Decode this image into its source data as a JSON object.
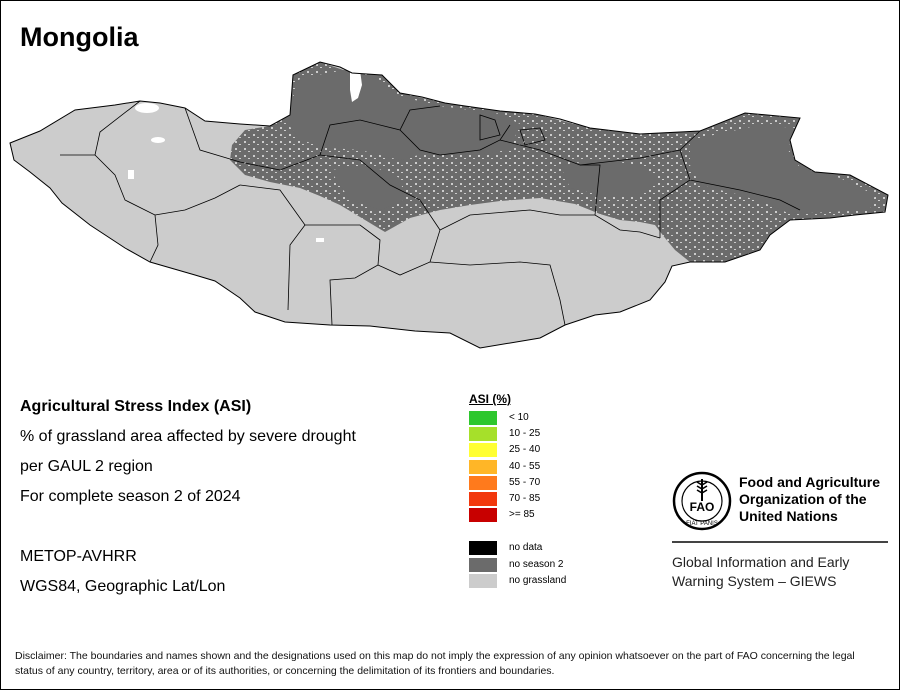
{
  "map": {
    "title": "Mongolia",
    "country": "Mongolia",
    "colors": {
      "no_grassland": "#cccccc",
      "no_season": "#6b6b6b",
      "boundary": "#000000"
    }
  },
  "info": {
    "index_name": "Agricultural Stress Index (ASI)",
    "description": "% of grassland area affected by severe drought",
    "region_level": "per GAUL 2 region",
    "period": "For complete season 2 of 2024",
    "sensor": "METOP-AVHRR",
    "projection": "WGS84, Geographic Lat/Lon"
  },
  "legend": {
    "title": "ASI (%)",
    "classes": [
      {
        "label": "< 10",
        "color": "#2ec72e"
      },
      {
        "label": "10 - 25",
        "color": "#a6e02a"
      },
      {
        "label": "25 - 40",
        "color": "#ffff33"
      },
      {
        "label": "40 - 55",
        "color": "#ffb627"
      },
      {
        "label": "55 - 70",
        "color": "#ff7a1c"
      },
      {
        "label": "70 - 85",
        "color": "#f2380d"
      },
      {
        "label": ">= 85",
        "color": "#c80000"
      }
    ],
    "other": [
      {
        "label": "no data",
        "color": "#000000"
      },
      {
        "label": "no season 2",
        "color": "#6b6b6b"
      },
      {
        "label": "no grassland",
        "color": "#cccccc"
      }
    ]
  },
  "organization": {
    "logo_text": "FAO",
    "logo_motto": "FIAT PANIS",
    "name_line1": "Food and Agriculture",
    "name_line2": "Organization of the",
    "name_line3": "United Nations",
    "system_line1": "Global Information and Early",
    "system_line2": "Warning System – GIEWS"
  },
  "disclaimer": "Disclaimer: The boundaries and names shown and the designations used on this map do not imply the expression of any opinion whatsoever on the part of FAO concerning the legal status of any country, territory, area or of its authorities, or concerning the delimitation of its frontiers and boundaries."
}
